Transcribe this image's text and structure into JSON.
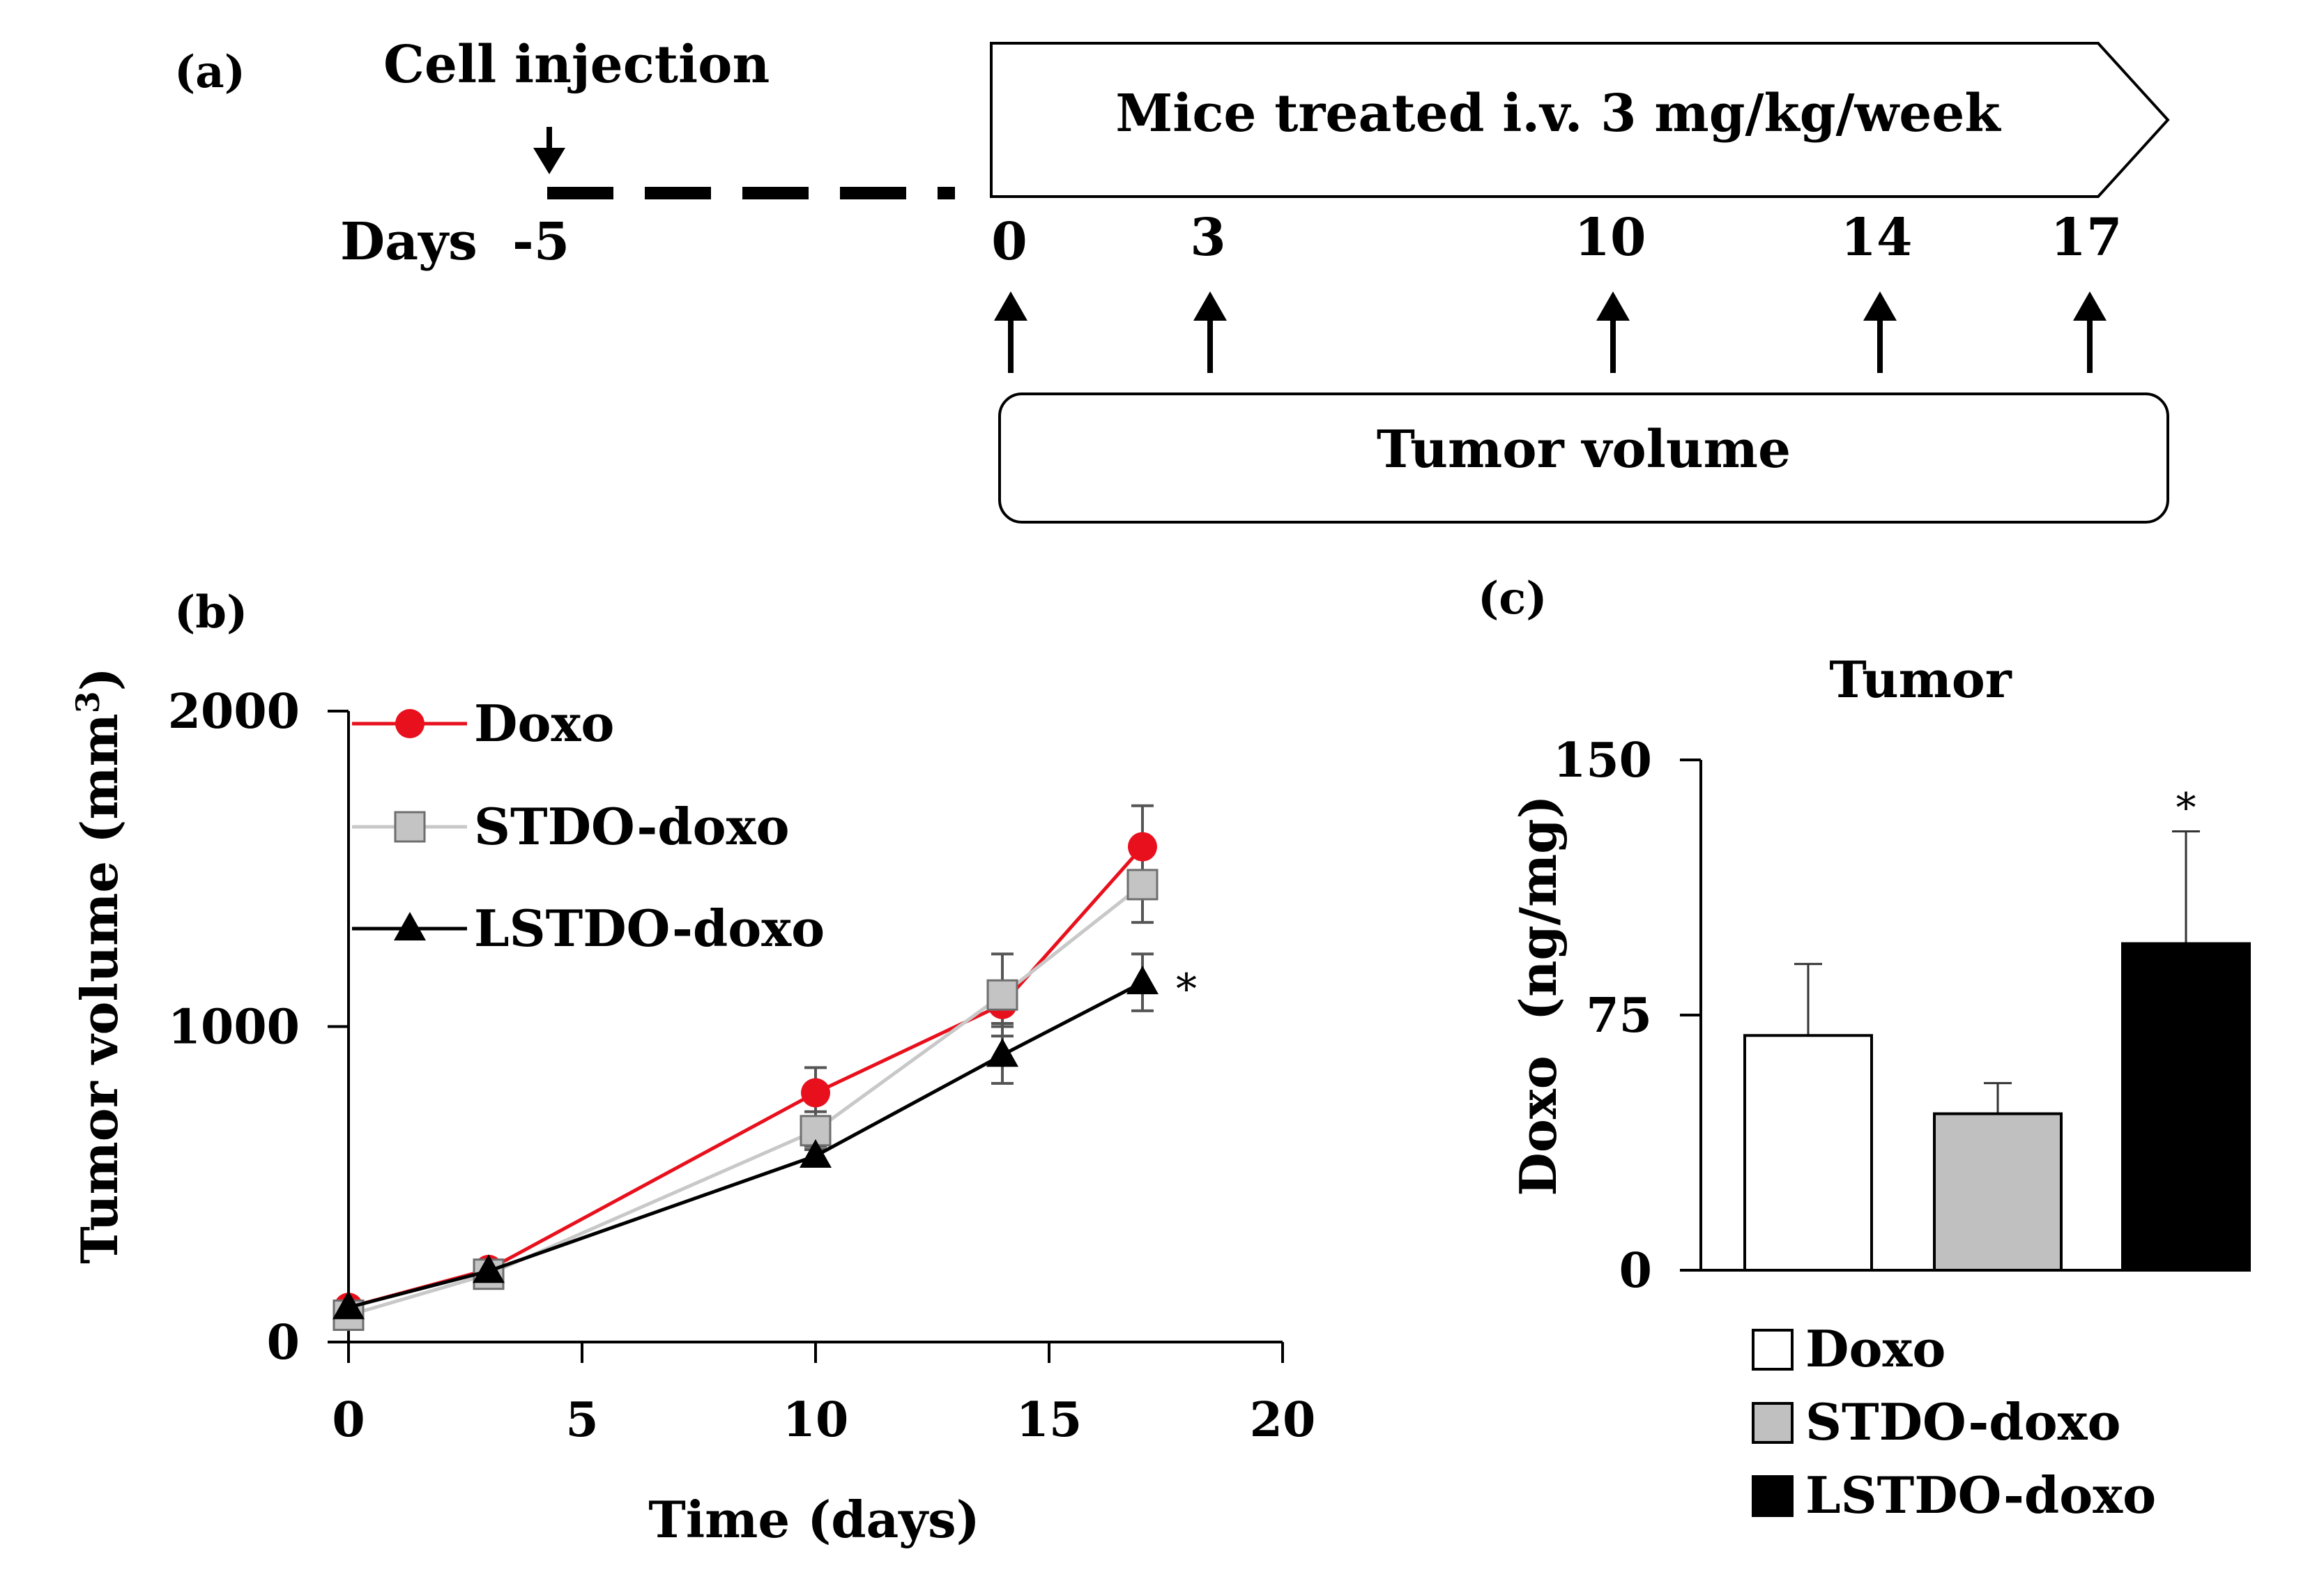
{
  "panel_a": {
    "label": "(a)",
    "cell_injection": "Cell injection",
    "days_label": "Days",
    "day_start": "-5",
    "treatment": "Mice treated i.v. 3 mg/kg/week",
    "days": [
      "0",
      "3",
      "10",
      "14",
      "17"
    ],
    "measurement": "Tumor volume"
  },
  "chart_data": [
    {
      "type": "line",
      "label": "(b)",
      "title": "",
      "xlabel": "Time (days)",
      "ylabel": "Tumor volume (mm",
      "ylabel_sup": "3",
      "ylabel_end": ")",
      "x": [
        0,
        3,
        10,
        14,
        17
      ],
      "xlim": [
        0,
        20
      ],
      "ylim": [
        0,
        2000
      ],
      "xticks": [
        0,
        5,
        10,
        15,
        20
      ],
      "yticks": [
        0,
        1000,
        2000
      ],
      "legend_position": "top-left",
      "series": [
        {
          "name": "Doxo",
          "color": "#e8101c",
          "marker": "circle",
          "values": [
            110,
            230,
            790,
            1070,
            1570
          ],
          "errors": [
            15,
            20,
            80,
            60,
            130
          ]
        },
        {
          "name": "STDO-doxo",
          "color": "#c8c8c8",
          "marker": "square",
          "values": [
            85,
            215,
            670,
            1100,
            1450
          ],
          "errors": [
            15,
            20,
            60,
            130,
            120
          ]
        },
        {
          "name": "LSTDO-doxo",
          "color": "#000000",
          "marker": "triangle",
          "values": [
            110,
            225,
            590,
            910,
            1140
          ],
          "errors": [
            15,
            20,
            30,
            90,
            90
          ]
        }
      ],
      "annotations": [
        {
          "text": "*",
          "series": "LSTDO-doxo",
          "x": 17
        }
      ]
    },
    {
      "type": "bar",
      "label": "(c)",
      "title": "Tumor",
      "xlabel": "",
      "ylabel": "Doxo  (ng/mg)",
      "ylim": [
        0,
        150
      ],
      "yticks": [
        0,
        75,
        150
      ],
      "categories": [
        "Doxo",
        "STDO-doxo",
        "LSTDO-doxo"
      ],
      "values": [
        69,
        46,
        96
      ],
      "errors": [
        21,
        9,
        33
      ],
      "colors": [
        "#ffffff",
        "#c0c0c0",
        "#000000"
      ],
      "legend_position": "bottom",
      "annotations": [
        {
          "text": "*",
          "category": "LSTDO-doxo"
        }
      ]
    }
  ]
}
